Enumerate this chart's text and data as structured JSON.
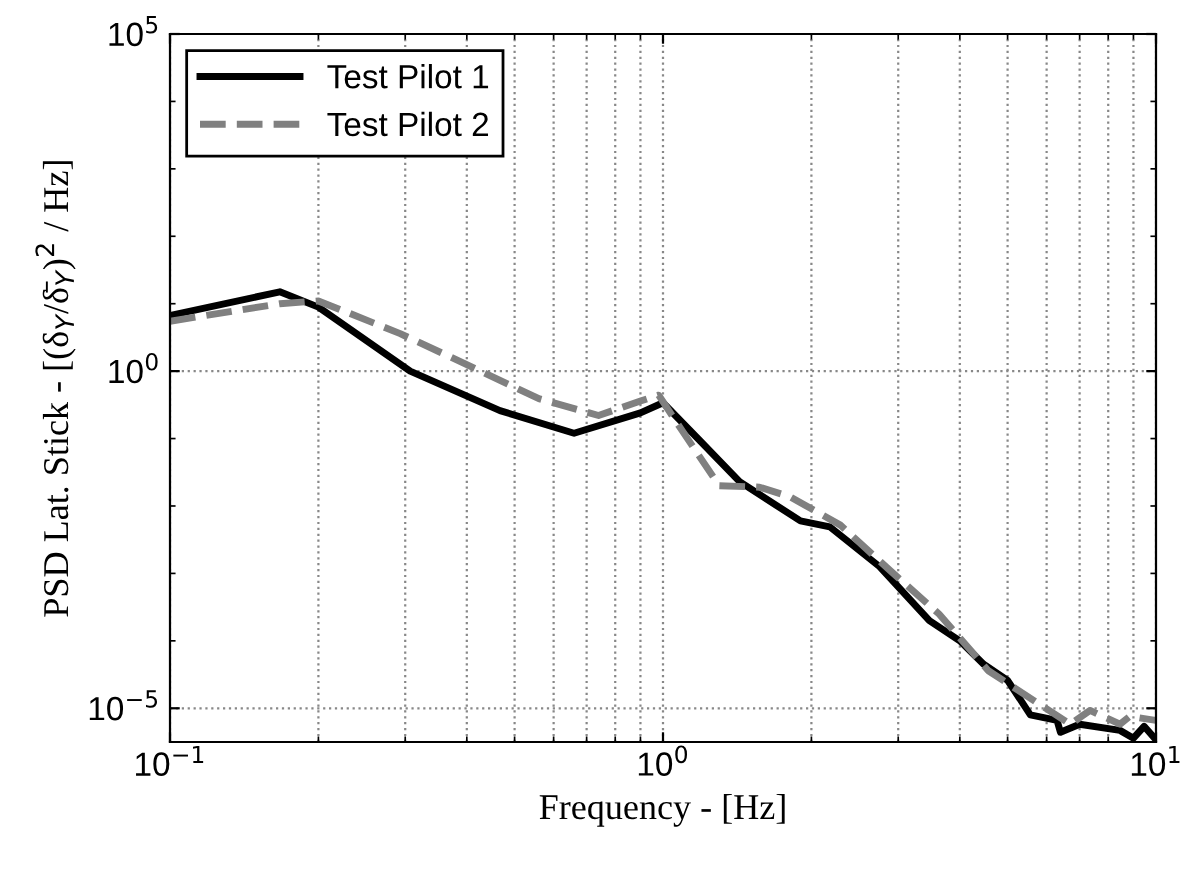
{
  "chart_data": {
    "type": "line",
    "xlabel": "Frequency - [Hz]",
    "ylabel": "PSD Lat. Stick - [(δ$_{Y}$/δ̄$_{Y}$)$^{2}$ / Hz]",
    "log": "xy",
    "grid": true,
    "legend": "top left",
    "marker": "none",
    "xlim": [
      0.1,
      10
    ],
    "xticks": [
      {
        "value": 0.1,
        "label": "10$^{−1}$"
      },
      {
        "value": 1,
        "label": "10$^{0}$"
      },
      {
        "value": 10,
        "label": "10$^{1}$"
      }
    ],
    "ylim": [
      3.16e-06,
      100000
    ],
    "yticks": [
      {
        "value": 1e-05,
        "label": "10$^{−5}$"
      },
      {
        "value": 1,
        "label": "10$^{0}$"
      },
      {
        "value": 100000,
        "label": "10$^{5}$"
      }
    ],
    "series": [
      {
        "name": "Test Pilot 1",
        "color": "#000000",
        "line_style": "solid",
        "x": [
          0.1,
          0.167,
          0.2,
          0.307,
          0.467,
          0.66,
          0.9,
          1.0,
          1.19,
          1.43,
          1.9,
          2.18,
          2.75,
          3.47,
          4.0,
          4.47,
          5.0,
          5.56,
          6.3,
          6.4,
          7.0,
          8.45,
          9.0,
          9.46,
          10
        ],
        "values": [
          6.7,
          15,
          8.9,
          1,
          0.26,
          0.12,
          0.24,
          0.34,
          0.092,
          0.023,
          0.006,
          0.0049,
          0.00126,
          0.0002,
          0.0001,
          4.5e-05,
          2.6e-05,
          8e-06,
          6.6e-06,
          4.4e-06,
          5.8e-06,
          4.7e-06,
          3.6e-06,
          5.4e-06,
          3.4e-06
        ]
      },
      {
        "name": "Test Pilot 2",
        "color": "#808080",
        "line_style": "dashed",
        "x": [
          0.1,
          0.167,
          0.2,
          0.293,
          0.41,
          0.56,
          0.74,
          0.9,
          0.98,
          1.08,
          1.3,
          1.57,
          1.81,
          2.29,
          2.89,
          3.63,
          4.57,
          5.8,
          6.7,
          7.35,
          8.45,
          8.85,
          10
        ],
        "values": [
          5.5,
          10,
          11,
          3.6,
          1.15,
          0.39,
          0.22,
          0.36,
          0.44,
          0.15,
          0.02,
          0.019,
          0.0137,
          0.0052,
          0.0011,
          0.00025,
          3.6e-05,
          1.15e-05,
          5.8e-06,
          9.3e-06,
          5.8e-06,
          7.6e-06,
          6.6e-06
        ]
      }
    ]
  }
}
